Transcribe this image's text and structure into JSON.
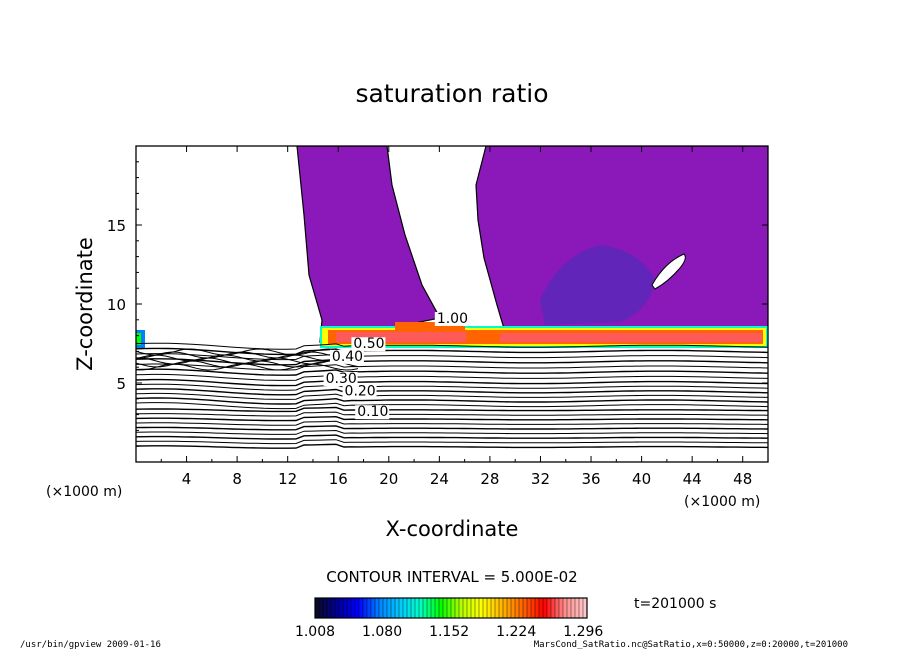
{
  "chart_data": {
    "type": "contour",
    "title": "saturation ratio",
    "xlabel": "X-coordinate",
    "ylabel": "Z-coordinate",
    "x_unit_left": "(×1000 m)",
    "x_unit_right": "(×1000 m)",
    "xlim": [
      0,
      50
    ],
    "ylim": [
      0,
      20
    ],
    "xticks": [
      4,
      8,
      12,
      16,
      20,
      24,
      28,
      32,
      36,
      40,
      44,
      48
    ],
    "xtick_labels": [
      "4",
      "8",
      "12",
      "16",
      "20",
      "24",
      "28",
      "32",
      "36",
      "40",
      "44",
      "48"
    ],
    "yticks": [
      5,
      10,
      15
    ],
    "ytick_labels": [
      "5",
      "10",
      "15"
    ],
    "contour_interval_text": "CONTOUR INTERVAL = 5.000E-02",
    "time_text": "t=201000 s",
    "contour_labels": [
      {
        "text": "1.00",
        "x": 23.8,
        "z": 8.8
      },
      {
        "text": "0.50",
        "x": 17.2,
        "z": 7.2
      },
      {
        "text": "0.40",
        "x": 15.5,
        "z": 6.4
      },
      {
        "text": "0.30",
        "x": 15.0,
        "z": 5.0
      },
      {
        "text": "0.20",
        "x": 16.5,
        "z": 4.2
      },
      {
        "text": "0.10",
        "x": 17.5,
        "z": 2.9
      }
    ],
    "colorbar": {
      "min": 1.008,
      "max": 1.3,
      "tick_labels": [
        "1.008",
        "1.080",
        "1.152",
        "1.224",
        "1.296"
      ],
      "colors": [
        "#0a0a2a",
        "#00009b",
        "#0000ff",
        "#0080ff",
        "#00c8ff",
        "#00ffc8",
        "#00ff00",
        "#b4ff00",
        "#ffff00",
        "#ffb400",
        "#ff6400",
        "#ff0000",
        "#ff8c8c",
        "#ffc8c8"
      ]
    },
    "fill_color": "#8b18b8",
    "deep_color": "#5a28b8"
  },
  "footer": {
    "left": "/usr/bin/gpview  2009-01-16",
    "right": "MarsCond_SatRatio.nc@SatRatio,x=0:50000,z=0:20000,t=201000"
  }
}
